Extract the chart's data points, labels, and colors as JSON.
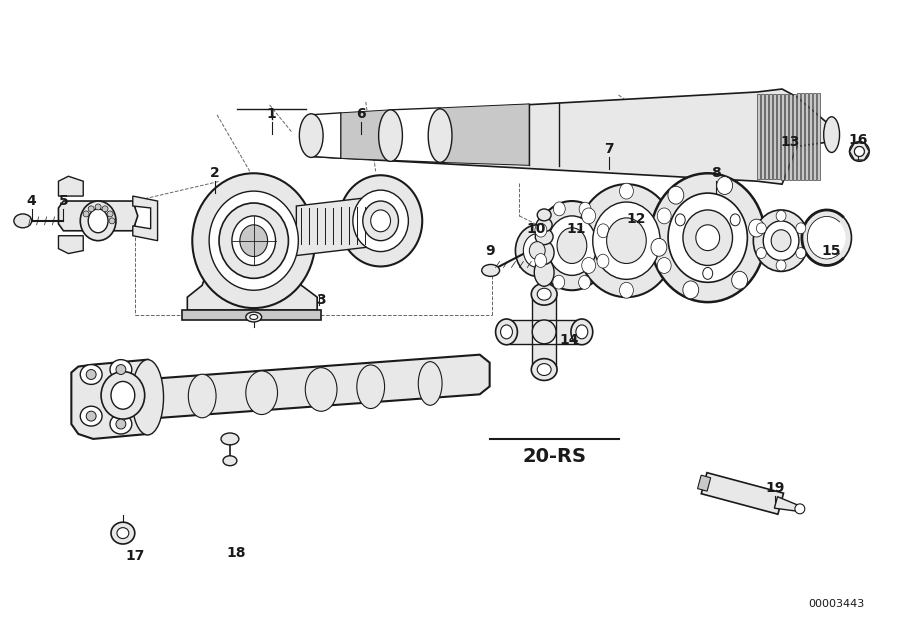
{
  "background_color": "#ffffff",
  "line_color": "#1a1a1a",
  "fill_light": "#e8e8e8",
  "fill_mid": "#c8c8c8",
  "fill_dark": "#a0a0a0",
  "diagram_id": "00003443",
  "label_20rs": "20-RS"
}
